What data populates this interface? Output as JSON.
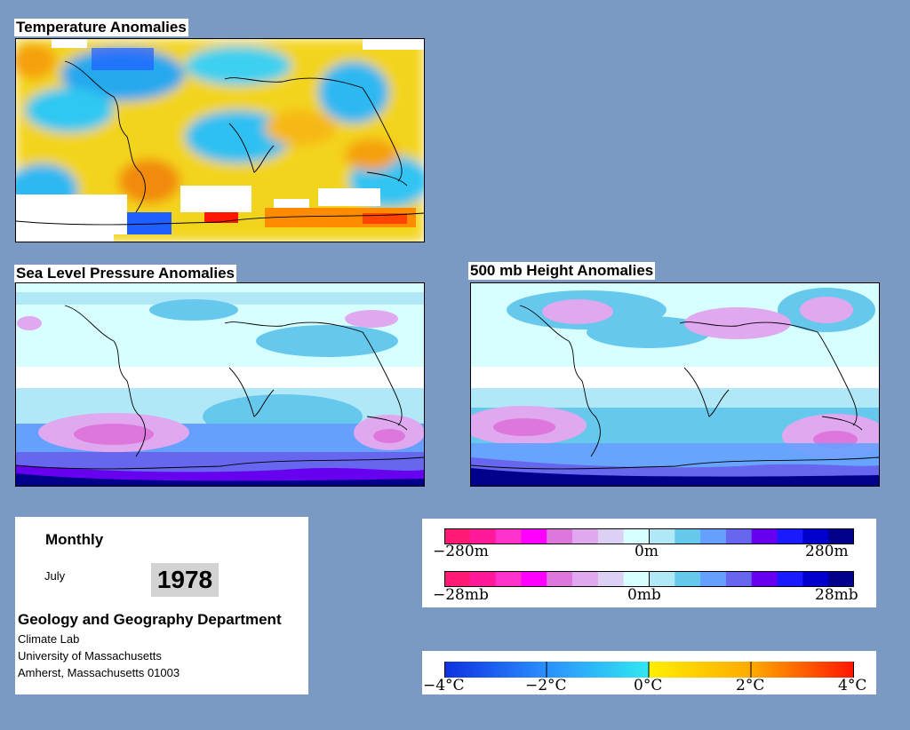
{
  "panels": {
    "temperature_title": "Temperature Anomalies",
    "slp_title": "Sea Level Pressure Anomalies",
    "height_title": "500 mb Height Anomalies"
  },
  "info": {
    "period": "Monthly",
    "month": "July",
    "year": "1978",
    "department": "Geology and Geography Department",
    "lab": "Climate Lab",
    "university": "University of Massachusetts",
    "address": "Amherst, Massachusetts 01003"
  },
  "legends": {
    "height": {
      "min": "−280m",
      "mid": "0m",
      "max": "280m"
    },
    "pressure": {
      "min": "−28mb",
      "mid": "0mb",
      "max": "28mb"
    },
    "temperature": [
      "−4°C",
      "−2°C",
      "0°C",
      "2°C",
      "4°C"
    ]
  },
  "colors": {
    "background": "#7a9ac4",
    "anomaly_scale": [
      "#ff1a75",
      "#ff1a9a",
      "#ff33cc",
      "#ff00ff",
      "#dd77dd",
      "#e0a8ee",
      "#dcd0f5",
      "#d8ffff",
      "#b0e8f8",
      "#66c8ec",
      "#66a0ff",
      "#6666ee",
      "#6600ee",
      "#1a1aff",
      "#0000cc",
      "#00008b"
    ],
    "temperature_scale": [
      "#1030e0",
      "#1f5fff",
      "#2a90ff",
      "#20b0f5",
      "#30d8f0",
      "#ffee00",
      "#ffd200",
      "#ffb000",
      "#ff8c00",
      "#ff5500",
      "#ff1500"
    ]
  }
}
